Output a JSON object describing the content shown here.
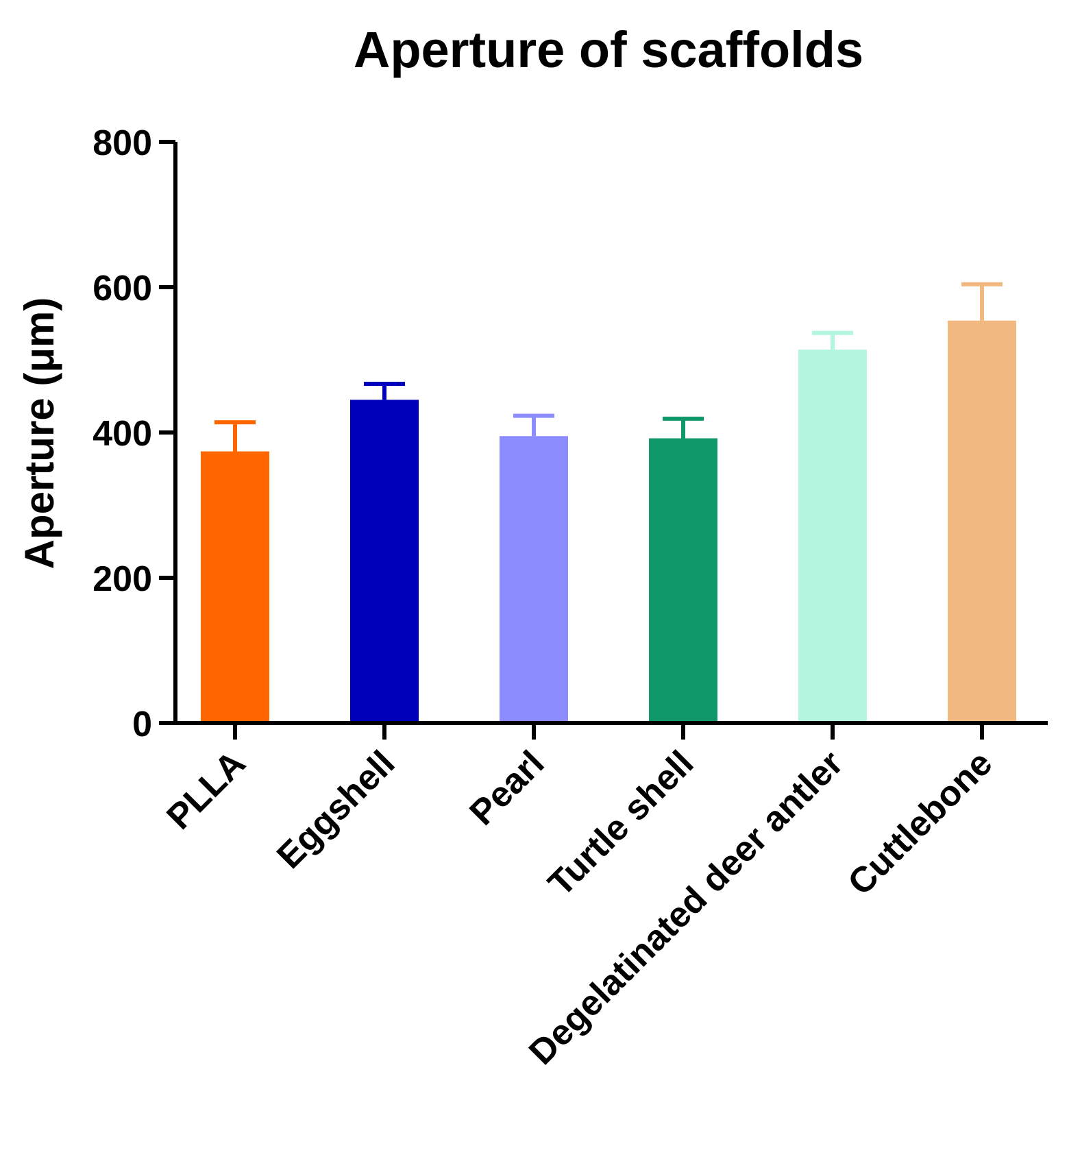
{
  "chart_data": {
    "type": "bar",
    "title": "Aperture of scaffolds",
    "xlabel": "",
    "ylabel": "Aperture (μm)",
    "ylim": [
      0,
      800
    ],
    "yticks": [
      0,
      200,
      400,
      600,
      800
    ],
    "grid": false,
    "categories": [
      "PLLA",
      "Eggshell",
      "Pearl",
      "Turtle shell",
      "Degelatinated deer antler",
      "Cuttlebone"
    ],
    "values": [
      374,
      445,
      395,
      392,
      514,
      554
    ],
    "errors": [
      40,
      22,
      28,
      27,
      23,
      50
    ],
    "colors": [
      "#FF6600",
      "#0000BB",
      "#8C8CFF",
      "#10986A",
      "#B3F5DF",
      "#F1B87F"
    ]
  }
}
